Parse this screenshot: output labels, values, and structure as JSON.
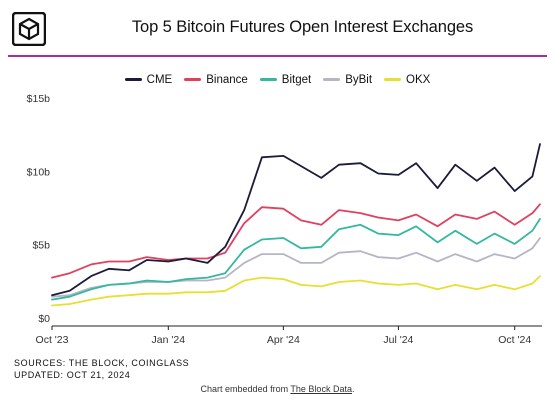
{
  "header": {
    "title": "Top 5 Bitcoin Futures Open Interest Exchanges",
    "logo_icon": "the-block-cube-icon",
    "rule_color": "#a82fa0"
  },
  "footer": {
    "sources": "SOURCES: THE BLOCK, COINGLASS",
    "updated": "UPDATED: OCT 21, 2024",
    "embed_prefix": "Chart embedded from ",
    "embed_link": "The Block Data",
    "embed_suffix": "."
  },
  "chart_data": {
    "type": "line",
    "title": "Top 5 Bitcoin Futures Open Interest Exchanges",
    "xlabel": "",
    "ylabel": "",
    "x_tick_labels": [
      "Oct '23",
      "Jan '24",
      "Apr '24",
      "Jul '24",
      "Oct '24"
    ],
    "y_tick_labels": [
      "$0",
      "$5b",
      "$10b",
      "$15b"
    ],
    "ylim": [
      0,
      15
    ],
    "y_unit": "billion USD",
    "grid": false,
    "legend_position": "top",
    "x": [
      "2023-10-01",
      "2023-10-15",
      "2023-11-01",
      "2023-11-15",
      "2023-12-01",
      "2023-12-15",
      "2024-01-01",
      "2024-01-15",
      "2024-02-01",
      "2024-02-15",
      "2024-03-01",
      "2024-03-15",
      "2024-04-01",
      "2024-04-15",
      "2024-05-01",
      "2024-05-15",
      "2024-06-01",
      "2024-06-15",
      "2024-07-01",
      "2024-07-15",
      "2024-08-01",
      "2024-08-15",
      "2024-09-01",
      "2024-09-15",
      "2024-10-01",
      "2024-10-15",
      "2024-10-21"
    ],
    "series": [
      {
        "name": "CME",
        "color": "#1b1b3a",
        "values": [
          2.1,
          2.4,
          3.4,
          3.9,
          3.8,
          4.5,
          4.4,
          4.6,
          4.3,
          5.4,
          7.9,
          11.5,
          11.6,
          10.9,
          10.1,
          11.0,
          11.1,
          10.4,
          10.3,
          11.1,
          9.4,
          11.0,
          9.9,
          10.8,
          9.2,
          10.2,
          12.4
        ]
      },
      {
        "name": "Binance",
        "color": "#e0405f",
        "values": [
          3.3,
          3.6,
          4.2,
          4.4,
          4.4,
          4.7,
          4.5,
          4.6,
          4.6,
          5.0,
          7.0,
          8.1,
          8.0,
          7.2,
          6.9,
          7.9,
          7.7,
          7.4,
          7.2,
          7.6,
          6.8,
          7.6,
          7.3,
          7.8,
          6.9,
          7.7,
          8.3
        ]
      },
      {
        "name": "Bitget",
        "color": "#35b7a0",
        "values": [
          1.8,
          2.0,
          2.5,
          2.8,
          2.9,
          3.1,
          3.0,
          3.2,
          3.3,
          3.6,
          5.2,
          5.9,
          6.0,
          5.3,
          5.4,
          6.6,
          6.9,
          6.3,
          6.2,
          6.8,
          5.7,
          6.5,
          5.6,
          6.3,
          5.6,
          6.5,
          7.3
        ]
      },
      {
        "name": "ByBit",
        "color": "#b4b6c4",
        "values": [
          2.0,
          2.1,
          2.6,
          2.8,
          2.9,
          3.0,
          3.0,
          3.1,
          3.1,
          3.3,
          4.3,
          4.9,
          4.9,
          4.3,
          4.3,
          5.0,
          5.1,
          4.7,
          4.6,
          5.0,
          4.4,
          4.9,
          4.4,
          4.9,
          4.6,
          5.3,
          6.0
        ]
      },
      {
        "name": "OKX",
        "color": "#e8df32",
        "values": [
          1.4,
          1.5,
          1.8,
          2.0,
          2.1,
          2.2,
          2.2,
          2.3,
          2.3,
          2.4,
          3.1,
          3.3,
          3.2,
          2.8,
          2.7,
          3.0,
          3.1,
          2.9,
          2.8,
          2.9,
          2.5,
          2.8,
          2.5,
          2.8,
          2.5,
          2.9,
          3.4
        ]
      }
    ]
  }
}
